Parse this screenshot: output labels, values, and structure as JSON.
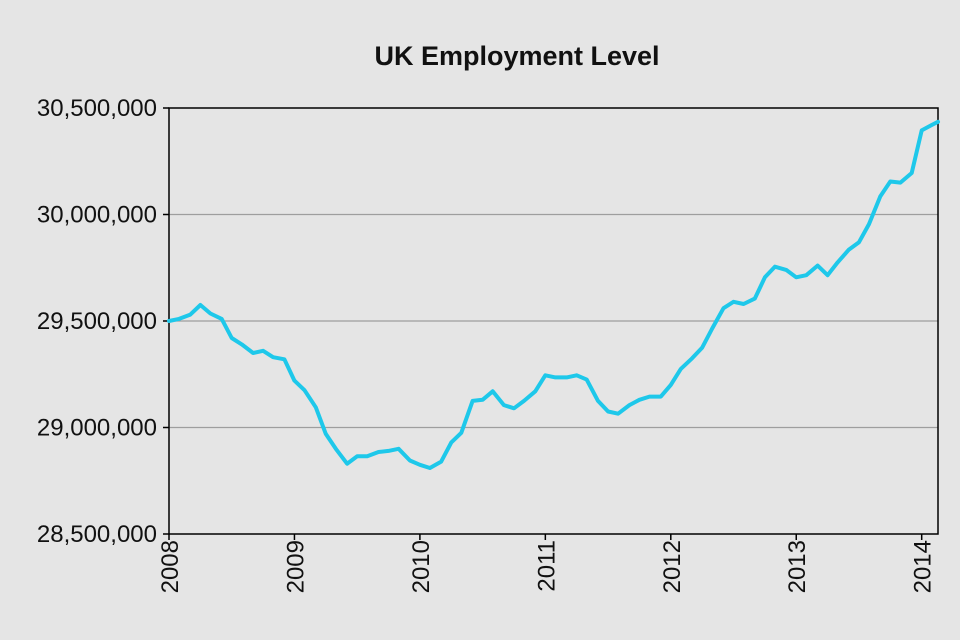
{
  "chart_data": {
    "type": "line",
    "title": "UK Employment Level",
    "xlabel": "",
    "ylabel": "",
    "ylim": [
      28500000,
      30500000
    ],
    "xlim": [
      2008.0,
      2014.13
    ],
    "y_ticks": [
      "28,500,000",
      "29,000,000",
      "29,500,000",
      "30,000,000",
      "30,500,000"
    ],
    "y_tick_values": [
      28500000,
      29000000,
      29500000,
      30000000,
      30500000
    ],
    "x_ticks": [
      "2008",
      "2009",
      "2010",
      "2011",
      "2012",
      "2013",
      "2014"
    ],
    "x_tick_values": [
      2008,
      2009,
      2010,
      2011,
      2012,
      2013,
      2014
    ],
    "grid": true,
    "legend": "none",
    "series": [
      {
        "color": "#1ec8ea",
        "x": [
          2008.0,
          2008.08,
          2008.17,
          2008.25,
          2008.33,
          2008.42,
          2008.5,
          2008.58,
          2008.67,
          2008.75,
          2008.83,
          2008.92,
          2009.0,
          2009.08,
          2009.17,
          2009.25,
          2009.33,
          2009.42,
          2009.5,
          2009.58,
          2009.67,
          2009.75,
          2009.83,
          2009.92,
          2010.0,
          2010.08,
          2010.17,
          2010.25,
          2010.33,
          2010.42,
          2010.5,
          2010.58,
          2010.67,
          2010.75,
          2010.83,
          2010.92,
          2011.0,
          2011.08,
          2011.17,
          2011.25,
          2011.33,
          2011.42,
          2011.5,
          2011.58,
          2011.67,
          2011.75,
          2011.83,
          2011.92,
          2012.0,
          2012.08,
          2012.17,
          2012.25,
          2012.33,
          2012.42,
          2012.5,
          2012.58,
          2012.67,
          2012.75,
          2012.83,
          2012.92,
          2013.0,
          2013.08,
          2013.17,
          2013.25,
          2013.33,
          2013.42,
          2013.5,
          2013.58,
          2013.67,
          2013.75,
          2013.83,
          2013.92,
          2014.0,
          2014.08,
          2014.13
        ],
        "values": [
          29500000,
          29510000,
          29530000,
          29575000,
          29535000,
          29510000,
          29420000,
          29390000,
          29350000,
          29360000,
          29330000,
          29320000,
          29220000,
          29175000,
          29095000,
          28970000,
          28900000,
          28830000,
          28865000,
          28865000,
          28885000,
          28890000,
          28900000,
          28845000,
          28825000,
          28810000,
          28840000,
          28930000,
          28975000,
          29125000,
          29130000,
          29170000,
          29105000,
          29090000,
          29125000,
          29170000,
          29245000,
          29235000,
          29235000,
          29245000,
          29225000,
          29125000,
          29075000,
          29065000,
          29105000,
          29130000,
          29145000,
          29145000,
          29200000,
          29275000,
          29325000,
          29375000,
          29465000,
          29560000,
          29590000,
          29580000,
          29605000,
          29705000,
          29755000,
          29740000,
          29705000,
          29715000,
          29760000,
          29715000,
          29775000,
          29835000,
          29870000,
          29955000,
          30085000,
          30155000,
          30150000,
          30195000,
          30395000,
          30420000,
          30435000
        ]
      }
    ]
  }
}
